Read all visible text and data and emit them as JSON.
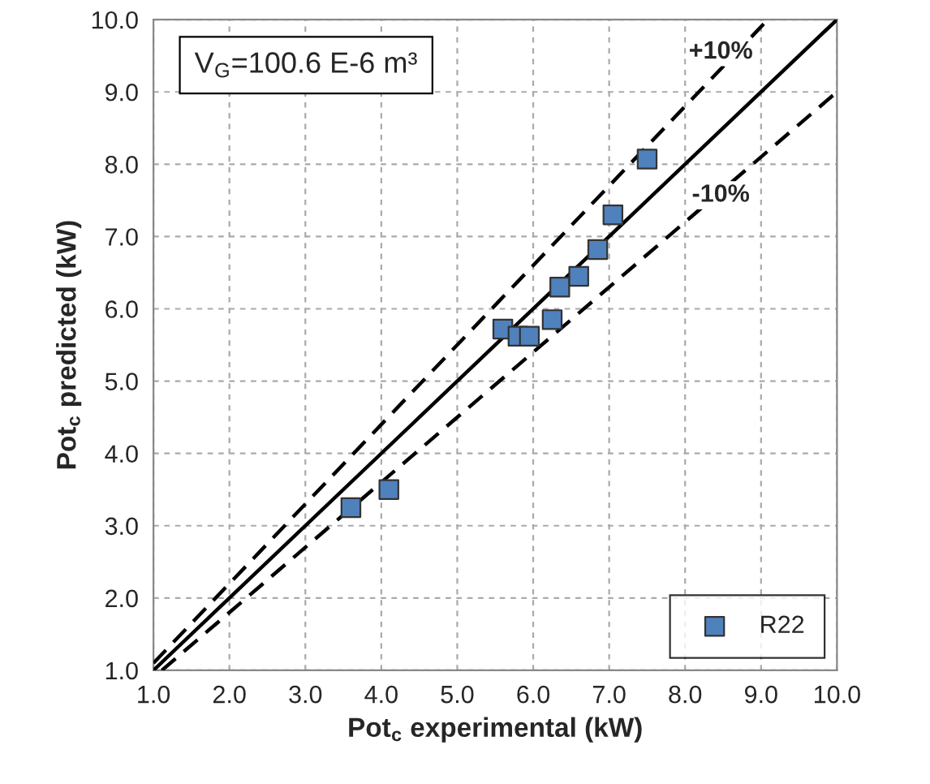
{
  "chart_data": {
    "type": "scatter",
    "xlabel": "Pot$_{c}$ experimental (kW)",
    "ylabel": "Pot$_{c}$ predicted (kW)",
    "annotations": [
      "V$_{G}$=100.6 E-6 m³",
      "+10%",
      "-10%"
    ],
    "series": [
      {
        "name": "R22",
        "color": "#4f81bd",
        "marker": "square",
        "x": [
          3.6,
          4.1,
          5.6,
          5.8,
          5.95,
          6.25,
          6.35,
          6.6,
          6.85,
          7.05,
          7.5
        ],
        "values": [
          3.25,
          3.5,
          5.72,
          5.62,
          5.62,
          5.85,
          6.3,
          6.45,
          6.82,
          7.3,
          8.07
        ]
      },
      {
        "type": "line",
        "color": "#000000",
        "line_style": "solid",
        "x": [
          1.0,
          10.0
        ],
        "values": [
          1.0,
          10.0
        ]
      },
      {
        "type": "line",
        "color": "#000000",
        "line_style": "dashed",
        "x": [
          1.0,
          9.09
        ],
        "values": [
          1.1,
          10.0
        ]
      },
      {
        "type": "line",
        "color": "#000000",
        "line_style": "dashed",
        "x": [
          1.111,
          10.0
        ],
        "values": [
          1.0,
          9.0
        ]
      }
    ],
    "xlim": [
      1.0,
      10.0
    ],
    "ylim": [
      1.0,
      10.0
    ],
    "xticks": [
      {
        "value": 1,
        "label": "1.0"
      },
      {
        "value": 2,
        "label": "2.0"
      },
      {
        "value": 3,
        "label": "3.0"
      },
      {
        "value": 4,
        "label": "4.0"
      },
      {
        "value": 5,
        "label": "5.0"
      },
      {
        "value": 6,
        "label": "6.0"
      },
      {
        "value": 7,
        "label": "7.0"
      },
      {
        "value": 8,
        "label": "8.0"
      },
      {
        "value": 9,
        "label": "9.0"
      },
      {
        "value": 10,
        "label": "10.0"
      }
    ],
    "yticks": [
      {
        "value": 1,
        "label": "1.0"
      },
      {
        "value": 2,
        "label": "2.0"
      },
      {
        "value": 3,
        "label": "3.0"
      },
      {
        "value": 4,
        "label": "4.0"
      },
      {
        "value": 5,
        "label": "5.0"
      },
      {
        "value": 6,
        "label": "6.0"
      },
      {
        "value": 7,
        "label": "7.0"
      },
      {
        "value": 8,
        "label": "8.0"
      },
      {
        "value": 9,
        "label": "9.0"
      },
      {
        "value": 10,
        "label": "10.0"
      }
    ],
    "grid": true,
    "legend": "bottom right"
  }
}
